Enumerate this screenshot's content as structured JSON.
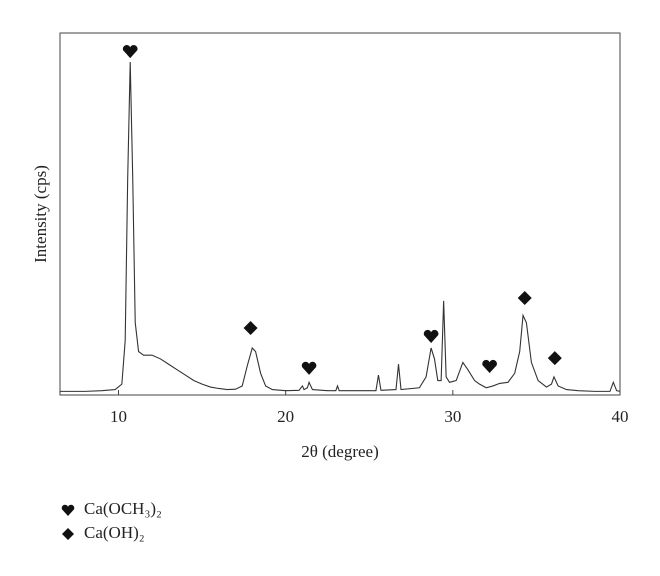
{
  "chart_data": {
    "type": "line",
    "xlabel": "2θ (degree)",
    "ylabel": "Intensity (cps)",
    "x": [
      6.5,
      8,
      9,
      9.8,
      10.2,
      10.4,
      10.55,
      10.7,
      10.85,
      11.0,
      11.2,
      11.5,
      12,
      12.5,
      13,
      13.5,
      14,
      14.5,
      15,
      15.5,
      16,
      16.5,
      17,
      17.4,
      17.7,
      18,
      18.2,
      18.5,
      18.8,
      19.2,
      20,
      20.8,
      21,
      21.1,
      21.3,
      21.4,
      21.6,
      22.5,
      23.0,
      23.1,
      23.2,
      25.4,
      25.55,
      25.7,
      26.6,
      26.75,
      26.9,
      28,
      28.4,
      28.7,
      28.9,
      29.1,
      29.3,
      29.45,
      29.6,
      29.8,
      30.2,
      30.6,
      30.9,
      31.3,
      31.6,
      32,
      32.4,
      32.8,
      33.3,
      33.7,
      34,
      34.2,
      34.4,
      34.7,
      35.1,
      35.6,
      35.9,
      36.05,
      36.3,
      36.8,
      37.5,
      38.5,
      39.4,
      39.6,
      39.8,
      40
    ],
    "values": [
      1,
      1,
      1.2,
      1.5,
      3,
      15,
      60,
      92,
      60,
      20,
      12,
      11,
      11,
      10,
      8.5,
      7,
      5.5,
      4,
      3,
      2.2,
      1.8,
      1.5,
      1.6,
      2.5,
      8,
      13,
      12,
      6,
      2.5,
      1.5,
      1.2,
      1.3,
      2.5,
      1.5,
      2,
      3.5,
      1.5,
      1.2,
      1.2,
      2.5,
      1.2,
      1.2,
      5.5,
      1.3,
      1.5,
      8.5,
      1.5,
      2,
      5,
      13,
      10,
      4,
      4,
      26,
      5,
      3.5,
      4,
      9,
      7,
      4,
      3,
      2,
      2.5,
      3.2,
      3.5,
      6,
      12,
      22,
      20,
      9,
      4,
      2.2,
      3,
      5,
      2.5,
      1.5,
      1.2,
      1,
      1,
      3.5,
      1.2,
      1
    ],
    "color": "#333333",
    "xlim": [
      6.5,
      40
    ],
    "xticks": [
      10,
      20,
      30,
      40
    ],
    "ylim": [
      0,
      100
    ],
    "markers": [
      {
        "symbol": "heart",
        "x": 10.7,
        "y": 95
      },
      {
        "symbol": "diamond",
        "x": 17.9,
        "y": 18.5
      },
      {
        "symbol": "heart",
        "x": 21.4,
        "y": 7.5
      },
      {
        "symbol": "heart",
        "x": 28.7,
        "y": 16.3
      },
      {
        "symbol": "heart",
        "x": 32.2,
        "y": 8
      },
      {
        "symbol": "diamond",
        "x": 34.3,
        "y": 26.8
      },
      {
        "symbol": "diamond",
        "x": 36.1,
        "y": 10.2
      }
    ],
    "legend": [
      {
        "symbol": "heart",
        "label": "Ca(OCH₃)₂"
      },
      {
        "symbol": "diamond",
        "label": "Ca(OH)₂"
      }
    ]
  }
}
